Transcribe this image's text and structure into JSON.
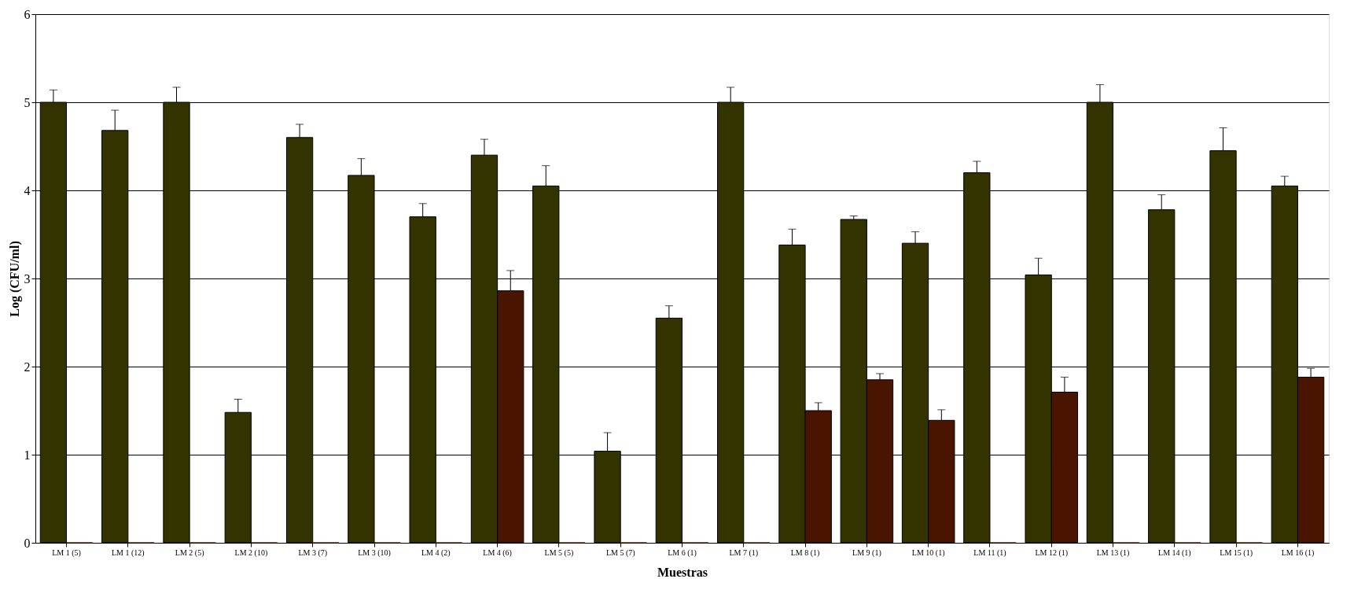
{
  "chart_data": {
    "type": "bar",
    "xlabel": "Muestras",
    "ylabel": "Log (CFU/ml)",
    "categories": [
      "LM 1 (5)",
      "LM 1 (12)",
      "LM 2 (5)",
      "LM 2 (10)",
      "LM 3 (7)",
      "LM 3 (10)",
      "LM 4 (2)",
      "LM 4 (6)",
      "LM 5 (5)",
      "LM 5 (7)",
      "LM 6 (1)",
      "LM 7 (1)",
      "LM 8 (1)",
      "LM 9 (1)",
      "LM 10 (1)",
      "LM 11 (1)",
      "LM 12 (1)",
      "LM 13 (1)",
      "LM 14 (1)",
      "LM 15 (1)",
      "LM 16 (1)"
    ],
    "series": [
      {
        "color": "#333300",
        "values": [
          5.0,
          4.68,
          5.0,
          1.48,
          4.6,
          4.17,
          3.7,
          4.4,
          4.05,
          1.04,
          2.55,
          5.0,
          3.38,
          3.67,
          3.4,
          4.2,
          3.04,
          5.0,
          3.78,
          4.45,
          4.05
        ],
        "errors": [
          [
            5.0,
            5.14
          ],
          [
            4.68,
            4.91
          ],
          [
            5.0,
            5.17
          ],
          [
            1.48,
            1.63
          ],
          [
            4.6,
            4.75
          ],
          [
            4.17,
            4.36
          ],
          [
            3.7,
            3.85
          ],
          [
            4.4,
            4.58
          ],
          [
            4.05,
            4.28
          ],
          [
            1.04,
            1.25
          ],
          [
            2.55,
            2.69
          ],
          [
            5.0,
            5.17
          ],
          [
            3.38,
            3.56
          ],
          [
            3.67,
            3.71
          ],
          [
            3.4,
            3.53
          ],
          [
            4.2,
            4.33
          ],
          [
            3.04,
            3.23
          ],
          [
            5.0,
            5.2
          ],
          [
            3.78,
            3.95
          ],
          [
            4.45,
            4.71
          ],
          [
            4.05,
            4.16
          ]
        ]
      },
      {
        "color": "#4a1500",
        "values": [
          0,
          0,
          0,
          0,
          0,
          0,
          0,
          2.86,
          0,
          0,
          0,
          0,
          1.5,
          1.85,
          1.39,
          0,
          1.71,
          0,
          0,
          0,
          1.88
        ],
        "errors": [
          null,
          null,
          null,
          null,
          null,
          null,
          null,
          [
            2.86,
            3.09
          ],
          null,
          null,
          null,
          null,
          [
            1.5,
            1.59
          ],
          [
            1.85,
            1.92
          ],
          [
            1.39,
            1.51
          ],
          null,
          [
            1.71,
            1.88
          ],
          null,
          null,
          null,
          [
            1.88,
            1.98
          ]
        ]
      }
    ],
    "ylim": [
      0,
      6
    ],
    "yticks": [
      0,
      1,
      2,
      3,
      4,
      5,
      6
    ],
    "grid": "y",
    "legend": false
  }
}
